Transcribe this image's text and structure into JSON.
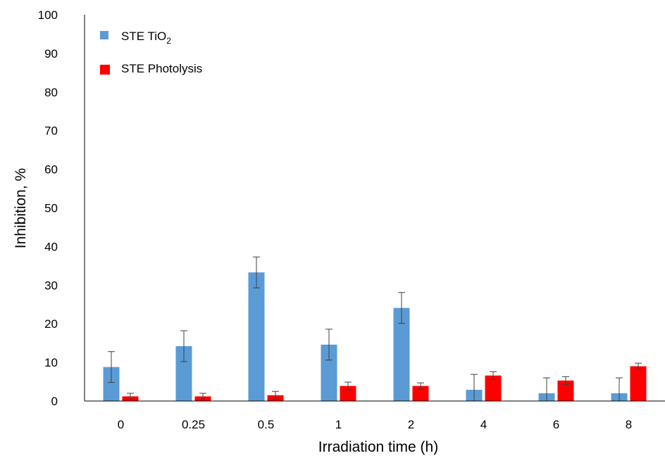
{
  "chart_data": {
    "type": "bar",
    "xlabel": "Irradiation time (h)",
    "ylabel": "Inhibition, %",
    "ylim": [
      0,
      100
    ],
    "yticks": [
      0,
      10,
      20,
      30,
      40,
      50,
      60,
      70,
      80,
      90,
      100
    ],
    "categories": [
      "0",
      "0.25",
      "0.5",
      "1",
      "2",
      "4",
      "6",
      "8"
    ],
    "series": [
      {
        "name_main": "STE TiO",
        "name_sub": "2",
        "color": "#5b9bd5",
        "values": [
          8.8,
          14.2,
          33.3,
          14.6,
          24.1,
          2.9,
          2.0,
          2.0
        ],
        "errors": [
          4.0,
          4.0,
          4.0,
          4.0,
          4.0,
          4.0,
          4.0,
          4.0
        ]
      },
      {
        "name_main": "STE Photolysis",
        "name_sub": "",
        "color": "#ff0000",
        "values": [
          1.2,
          1.2,
          1.5,
          3.9,
          3.9,
          6.6,
          5.3,
          9.0
        ],
        "errors": [
          0.8,
          0.8,
          1.0,
          1.0,
          0.8,
          1.0,
          1.0,
          0.8
        ]
      }
    ],
    "legend_position": "top-left",
    "grid": false
  }
}
